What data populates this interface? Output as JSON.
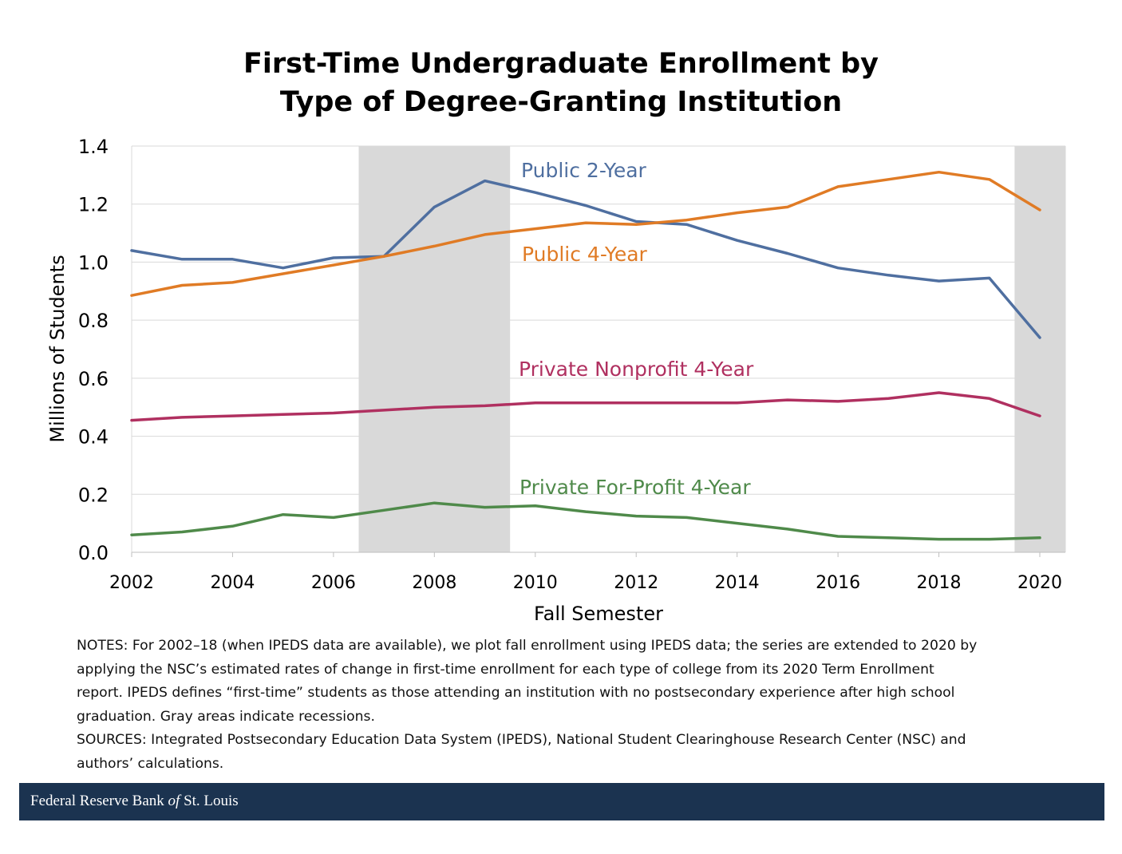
{
  "chart_data": {
    "type": "line",
    "title_lines": [
      "First-Time Undergraduate Enrollment by",
      "Type of Degree-Granting Institution"
    ],
    "xlabel": "Fall Semester",
    "ylabel": "Millions of Students",
    "xlim": [
      2002,
      2020
    ],
    "ylim": [
      0.0,
      1.4
    ],
    "x_ticks": [
      2002,
      2004,
      2006,
      2008,
      2010,
      2012,
      2014,
      2016,
      2018,
      2020
    ],
    "y_ticks": [
      "0.0",
      "0.2",
      "0.4",
      "0.6",
      "0.8",
      "1.0",
      "1.2",
      "1.4"
    ],
    "grid": true,
    "recessions": [
      [
        2006.5,
        2009.5
      ],
      [
        2019.5,
        2020.5
      ]
    ],
    "x": [
      2002,
      2003,
      2004,
      2005,
      2006,
      2007,
      2008,
      2009,
      2010,
      2011,
      2012,
      2013,
      2014,
      2015,
      2016,
      2017,
      2018,
      2019,
      2020
    ],
    "series": [
      {
        "name": "Public 2-Year",
        "color": "#4f6fa0",
        "values": [
          1.04,
          1.01,
          1.01,
          0.98,
          1.015,
          1.02,
          1.19,
          1.28,
          1.24,
          1.195,
          1.14,
          1.13,
          1.075,
          1.03,
          0.98,
          0.955,
          0.935,
          0.945,
          0.74
        ]
      },
      {
        "name": "Public 4-Year",
        "color": "#e07b25",
        "values": [
          0.885,
          0.92,
          0.93,
          0.96,
          0.99,
          1.02,
          1.055,
          1.095,
          1.115,
          1.135,
          1.13,
          1.145,
          1.17,
          1.19,
          1.26,
          1.285,
          1.31,
          1.285,
          1.18
        ]
      },
      {
        "name": "Private Nonprofit 4-Year",
        "color": "#b03060",
        "values": [
          0.455,
          0.465,
          0.47,
          0.475,
          0.48,
          0.49,
          0.5,
          0.505,
          0.515,
          0.515,
          0.515,
          0.515,
          0.515,
          0.525,
          0.52,
          0.53,
          0.55,
          0.53,
          0.47
        ]
      },
      {
        "name": "Private For-Profit 4-Year",
        "color": "#4f8a4a",
        "values": [
          0.06,
          0.07,
          0.09,
          0.13,
          0.12,
          0.145,
          0.17,
          0.155,
          0.16,
          0.14,
          0.125,
          0.12,
          0.1,
          0.08,
          0.055,
          0.05,
          0.045,
          0.045,
          0.05
        ]
      }
    ]
  },
  "notes": {
    "line1": "NOTES: For 2002–18 (when IPEDS data are available), we plot fall enrollment using IPEDS data; the series are extended to 2020 by",
    "line2": "applying the NSC’s estimated rates of change in first-time enrollment for each type of college from its 2020 Term Enrollment",
    "line3": "report.  IPEDS defines “first-time” students as those attending an institution with no postsecondary experience after high school",
    "line4": "graduation.  Gray areas indicate recessions.",
    "line5": "SOURCES: Integrated Postsecondary Education Data System (IPEDS), National Student Clearinghouse Research Center (NSC) and",
    "line6": "authors’ calculations."
  },
  "footer": {
    "before": "Federal Reserve Bank ",
    "italic": "of",
    "after": " St. Louis"
  }
}
